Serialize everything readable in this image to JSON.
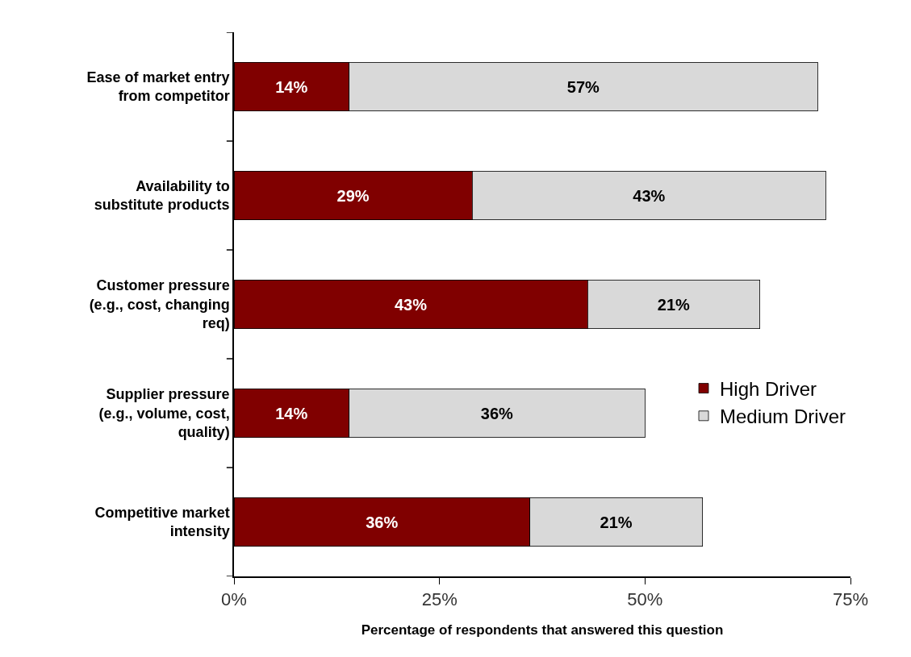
{
  "chart_data": {
    "type": "bar",
    "orientation": "horizontal",
    "stacked": true,
    "categories": [
      "Ease of market entry\nfrom competitor",
      "Availability to\nsubstitute products",
      "Customer pressure\n(e.g., cost, changing\nreq)",
      "Supplier pressure\n(e.g., volume, cost,\nquality)",
      "Competitive market\nintensity"
    ],
    "series": [
      {
        "name": "High Driver",
        "color": "#800000",
        "values": [
          14,
          29,
          43,
          14,
          36
        ],
        "value_labels": [
          "14%",
          "29%",
          "43%",
          "14%",
          "36%"
        ]
      },
      {
        "name": "Medium Driver",
        "color": "#d9d9d9",
        "values": [
          57,
          43,
          21,
          36,
          21
        ],
        "value_labels": [
          "57%",
          "43%",
          "21%",
          "36%",
          "21%"
        ]
      }
    ],
    "xlabel": "Percentage of respondents that answered this question",
    "xlim": [
      0,
      75
    ],
    "xticks": [
      {
        "value": 0,
        "label": "0%"
      },
      {
        "value": 25,
        "label": "25%"
      },
      {
        "value": 50,
        "label": "50%"
      },
      {
        "value": 75,
        "label": "75%"
      }
    ],
    "legend": "right"
  }
}
